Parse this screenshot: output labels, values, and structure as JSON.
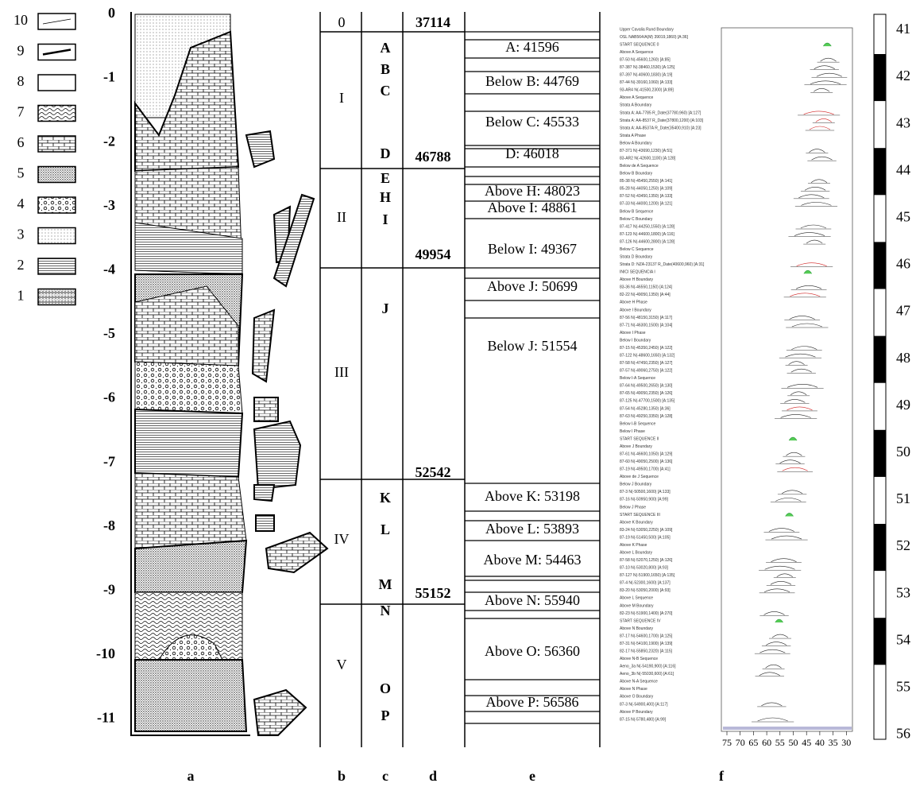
{
  "legend": {
    "items": [
      "10",
      "9",
      "8",
      "7",
      "6",
      "5",
      "4",
      "3",
      "2",
      "1"
    ]
  },
  "column_a": {
    "depths": [
      "0",
      "-1",
      "-2",
      "-3",
      "-4",
      "-5",
      "-6",
      "-7",
      "-8",
      "-9",
      "-10",
      "-11"
    ]
  },
  "column_b": {
    "units": [
      "0",
      "I",
      "II",
      "III",
      "IV",
      "V"
    ]
  },
  "column_c": {
    "letters": [
      "A",
      "B",
      "C",
      "D",
      "E",
      "H",
      "I",
      "J",
      "K",
      "L",
      "M",
      "N",
      "O",
      "P"
    ]
  },
  "column_d": {
    "dates": [
      "37114",
      "46788",
      "49954",
      "52542",
      "55152"
    ]
  },
  "column_e": {
    "labels": [
      "A: 41596",
      "Below B: 44769",
      "Below C: 45533",
      "D: 46018",
      "Above H: 48023",
      "Above I: 48861",
      "Below I: 49367",
      "Above J: 50699",
      "Below J: 51554",
      "Above K: 53198",
      "Above L: 53893",
      "Above M: 54463",
      "Above N: 55940",
      "Above O: 56360",
      "Above P: 56586"
    ]
  },
  "column_f": {
    "labels": [
      "Upper Cavalia Rund Boundary",
      "OSL NAB564/A(M) 39019,1860) [A:36]",
      "START SEQUENCE 0",
      "Above A Sequence",
      "87-50 N(-45600,1260) [A:85]",
      "87-387 N(-38460,1530) [A:125]",
      "87-397 N(-40600,1830) [A:19]",
      "87-44 N(-39160,1060) [A:133]",
      "93-AR4 N(-41500,2300) [A:89]",
      "Above A Sequence",
      "Strata A Boundary",
      "Strata A: AA-7785 R_Date(37780,960) [A:127]",
      "Strata A: AA-8537 R_Date(37800,1200) [A:103]",
      "Strata A: AA-8537A R_Date(35400,910) [A:23]",
      "Strata A Phase",
      "Below A Boundary",
      "87-371 N(-43690,1230) [A:51]",
      "83-AR2 N(-42600,1100) [A:128]",
      "Below de A Sequence",
      "Below B Boundary",
      "85-38 N(-45450,2550) [A:141]",
      "85-28 N(-44050,1250) [A:109]",
      "87-52 N(-43450,1350) [A:133]",
      "87-33 N(-44000,1200) [A:121]",
      "Below B Sequence",
      "Below C Boundary",
      "87-417 N(-44250,1550) [A:128]",
      "87-123 N(-44600,1800) [A:116]",
      "87-126 N(-44600,2800) [A:128]",
      "Below C Sequence",
      "Strata D Boundary",
      "Strata D: NZA-23137 R_Date(40600,960) [A:31]",
      "INICI SEQUENCIA I",
      "Above H Boundary",
      "83-36 N(-46550,1150) [A:124]",
      "82-22 N(-49050,1350) [A:44]",
      "Above H Phase",
      "Above I Boundary",
      "87-56 N(-48150,3150) [A:117]",
      "87-71 N(-46300,1500) [A:104]",
      "Above I Phase",
      "Below I Boundary",
      "87-15 N(-45350,2450) [A:122]",
      "87-122 N(-48600,1650) [A:132]",
      "87-58 N(-47450,2350) [A:127]",
      "87-57 N(-49060,2750) [A:122]",
      "Below I-A Sequence",
      "87-64 N(-49500,2650) [A:130]",
      "87-65 N(-49050,2350) [A:126]",
      "87-125 N(-47700,1500) [A:135]",
      "87-54 N(-45280,1350) [A:36]",
      "87-63 N(-49250,3350) [A:128]",
      "Below I-B Sequence",
      "Below I Phase",
      "START SEQUENCE II",
      "Above J Boundary",
      "87-61 N(-46600,1050) [A:129]",
      "87-60 N(-49050,2500) [A:136]",
      "87-19 N(-49500,1700) [A:41]",
      "Above de J Sequence",
      "Below J Boundary",
      "87-3 N(-50500,1600) [A:133]",
      "87-16 N(-50950,900) [A:99]",
      "Below J Phase",
      "START SEQUENCE III",
      "Above K Boundary",
      "83-24 N(-53050,2250) [A:109]",
      "87-19 N(-51450,500) [A:105]",
      "Above K Phase",
      "Above L Boundary",
      "87-58 N(-52070,1250) [A:126]",
      "87-10 N(-53020,800) [A:93]",
      "87-127 N(-51900,1650) [A:135]",
      "87-4 N(-52300,1600) [A:137]",
      "83-20 N(-53050,2000) [A:93]",
      "Above L Sequence",
      "Above M Boundary",
      "82-23 N(-51900,1400) [A:270]",
      "START SEQUENCE IV",
      "Above N Boundary",
      "87-17 N(-54600,1700) [A:125]",
      "87-31 N(-54100,1900) [A:139]",
      "82-17 N(-55850,2320) [A:115]",
      "Above N-B Sequence",
      "Aeno_3a N(-54190,900) [A:116]",
      "Aeno_3b N(-55030,600) [A:61]",
      "Above N-A Sequence",
      "Above N Phase",
      "Above O Boundary",
      "87-3 N(-54900,400) [A:117]",
      "Above P Boundary",
      "87-15 N(-5780,480) [A:99]"
    ],
    "axis": [
      "75",
      "70",
      "65",
      "60",
      "55",
      "50",
      "45",
      "40",
      "35",
      "30"
    ]
  },
  "scale": {
    "labels": [
      "41",
      "42",
      "43",
      "44",
      "45",
      "46",
      "47",
      "48",
      "49",
      "50",
      "51",
      "52",
      "53",
      "54",
      "55",
      "56"
    ]
  },
  "panels": [
    "a",
    "b",
    "c",
    "d",
    "e",
    "f"
  ]
}
